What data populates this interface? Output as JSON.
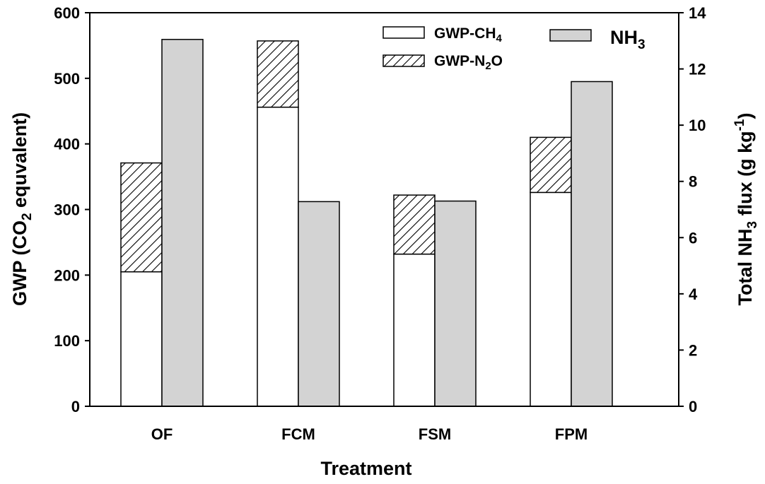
{
  "chart_data": {
    "type": "bar",
    "title": "",
    "xlabel": "Treatment",
    "ylabel": {
      "pre": "GWP (CO",
      "sub": "2",
      "post": " equvalent)"
    },
    "y2label": {
      "pre": "Total NH",
      "sub": "3",
      "mid": " flux (g kg",
      "sup": "-1",
      "post": ")"
    },
    "categories": [
      "OF",
      "FCM",
      "FSM",
      "FPM"
    ],
    "ylim": [
      0,
      600
    ],
    "yticks": [
      0,
      100,
      200,
      300,
      400,
      500,
      600
    ],
    "y2lim": [
      0,
      14
    ],
    "y2ticks": [
      0,
      2,
      4,
      6,
      8,
      10,
      12,
      14
    ],
    "series": [
      {
        "key": "ch4",
        "name": {
          "pre": "GWP-CH",
          "sub": "4",
          "post": ""
        },
        "axis": "left",
        "stack": "gwp",
        "style": "white",
        "values": [
          205,
          456,
          232,
          326
        ]
      },
      {
        "key": "n2o",
        "name": {
          "pre": "GWP-N",
          "sub": "2",
          "post": "O"
        },
        "axis": "left",
        "stack": "gwp",
        "style": "hatch",
        "values": [
          166,
          101,
          90,
          84
        ]
      },
      {
        "key": "nh3",
        "name": {
          "pre": "NH",
          "sub": "3",
          "post": ""
        },
        "axis": "right",
        "style": "gray",
        "values": [
          13.05,
          7.28,
          7.3,
          11.55
        ]
      }
    ],
    "legend_position": "top-right",
    "colors": {
      "ch4": "#ffffff",
      "n2o_hatch": "#000000",
      "nh3": "#d3d3d3",
      "axis": "#000000"
    }
  }
}
